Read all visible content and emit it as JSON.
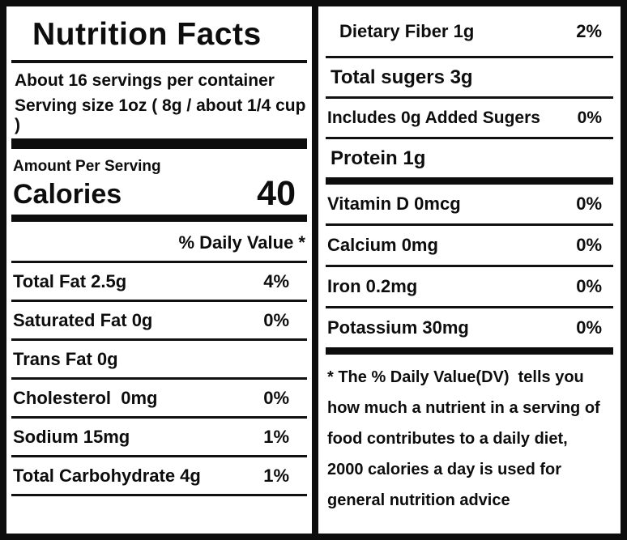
{
  "label": {
    "title": "Nutrition Facts",
    "servings_per_container": "About 16 servings per container",
    "serving_size": "Serving size 1oz ( 8g / about 1/4 cup )",
    "amount_per_serving": "Amount Per Serving",
    "calories_label": "Calories",
    "calories_value": "40",
    "daily_value_header": "% Daily Value *",
    "left_rows": [
      {
        "name": "Total Fat 2.5g",
        "dv": "4%"
      },
      {
        "name": "Saturated Fat 0g",
        "dv": "0%"
      },
      {
        "name": "Trans Fat 0g",
        "dv": ""
      },
      {
        "name": "Cholesterol  0mg",
        "dv": "0%"
      },
      {
        "name": "Sodium 15mg",
        "dv": "1%"
      },
      {
        "name": "Total Carbohydrate 4g",
        "dv": "1%"
      }
    ],
    "right_rows_top": [
      {
        "name": "Dietary Fiber 1g",
        "dv": "2%"
      },
      {
        "name": "Total sugers 3g",
        "dv": ""
      },
      {
        "name": "Includes 0g Added Sugers",
        "dv": "0%"
      },
      {
        "name": "Protein 1g",
        "dv": ""
      }
    ],
    "right_rows_minerals": [
      {
        "name": "Vitamin D 0mcg",
        "dv": "0%"
      },
      {
        "name": "Calcium 0mg",
        "dv": "0%"
      },
      {
        "name": "Iron 0.2mg",
        "dv": "0%"
      },
      {
        "name": "Potassium 30mg",
        "dv": "0%"
      }
    ],
    "footnote_lines": [
      "* The % Daily Value(DV)  tells you",
      "how much a nutrient in a serving of",
      "food contributes to a daily diet,",
      "2000 calories a day is used for",
      "general nutrition advice"
    ]
  }
}
